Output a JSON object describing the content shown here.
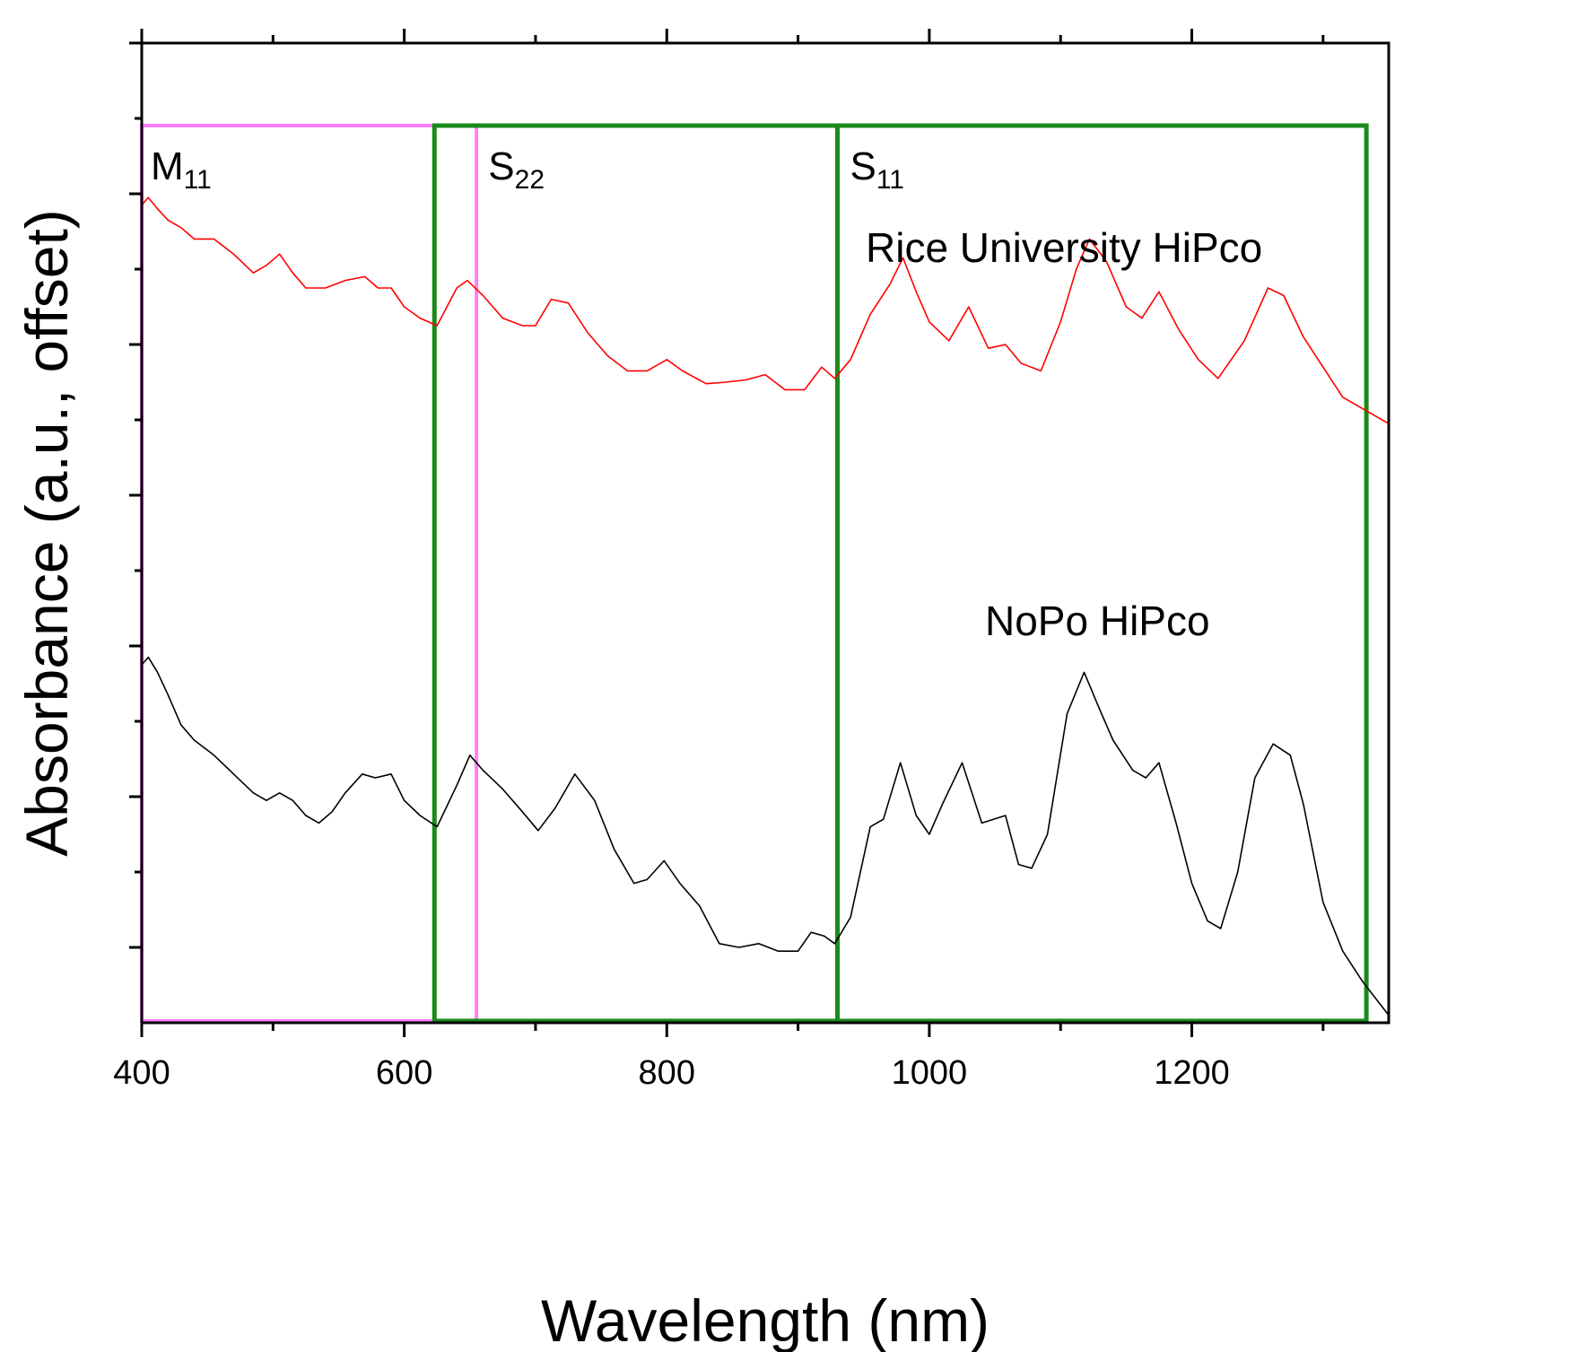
{
  "chart_data": {
    "type": "line",
    "title": "",
    "xlabel": "Wavelength (nm)",
    "ylabel": "Absorbance (a.u., offset)",
    "xlim": [
      400,
      1350
    ],
    "ylim": [
      0,
      13
    ],
    "x_ticks": [
      400,
      600,
      800,
      1000,
      1200
    ],
    "x_minor_ticks": [
      500,
      700,
      900,
      1100,
      1300
    ],
    "y_ticks_major": [
      1,
      3,
      5,
      7,
      9,
      11,
      13
    ],
    "y_ticks_minor": [
      2,
      4,
      6,
      8,
      10,
      12
    ],
    "grid": false,
    "series": [
      {
        "name": "Rice University HiPco",
        "color": "#ff0000",
        "x": [
          400,
          405,
          412,
          420,
          430,
          440,
          455,
          470,
          485,
          495,
          505,
          515,
          525,
          540,
          555,
          570,
          580,
          590,
          600,
          612,
          625,
          640,
          648,
          660,
          675,
          690,
          700,
          712,
          725,
          740,
          755,
          770,
          785,
          800,
          812,
          830,
          845,
          860,
          875,
          890,
          905,
          918,
          928,
          940,
          955,
          970,
          980,
          990,
          1000,
          1015,
          1030,
          1045,
          1058,
          1070,
          1085,
          1100,
          1112,
          1122,
          1135,
          1150,
          1162,
          1175,
          1190,
          1205,
          1220,
          1240,
          1258,
          1270,
          1285,
          1300,
          1315,
          1330,
          1350
        ],
        "y": [
          10.85,
          10.95,
          10.8,
          10.65,
          10.55,
          10.4,
          10.4,
          10.2,
          9.95,
          10.05,
          10.2,
          9.95,
          9.75,
          9.75,
          9.85,
          9.9,
          9.75,
          9.75,
          9.5,
          9.35,
          9.25,
          9.75,
          9.85,
          9.65,
          9.35,
          9.25,
          9.25,
          9.6,
          9.55,
          9.15,
          8.85,
          8.65,
          8.65,
          8.8,
          8.65,
          8.48,
          8.5,
          8.53,
          8.6,
          8.4,
          8.4,
          8.7,
          8.55,
          8.8,
          9.4,
          9.8,
          10.15,
          9.7,
          9.3,
          9.05,
          9.5,
          8.95,
          9.0,
          8.75,
          8.65,
          9.3,
          10.0,
          10.4,
          10.1,
          9.5,
          9.35,
          9.7,
          9.2,
          8.8,
          8.55,
          9.05,
          9.75,
          9.65,
          9.1,
          8.7,
          8.3,
          8.15,
          7.95
        ]
      },
      {
        "name": "NoPo HiPco",
        "color": "#000000",
        "x": [
          400,
          405,
          412,
          420,
          430,
          440,
          455,
          470,
          485,
          495,
          505,
          515,
          525,
          535,
          545,
          555,
          568,
          578,
          590,
          600,
          612,
          625,
          640,
          650,
          660,
          675,
          690,
          702,
          715,
          730,
          745,
          760,
          775,
          785,
          798,
          810,
          825,
          840,
          855,
          870,
          885,
          900,
          910,
          920,
          928,
          940,
          955,
          965,
          978,
          990,
          1000,
          1010,
          1025,
          1040,
          1058,
          1068,
          1078,
          1090,
          1105,
          1118,
          1130,
          1140,
          1155,
          1165,
          1175,
          1188,
          1200,
          1212,
          1222,
          1235,
          1248,
          1262,
          1275,
          1285,
          1300,
          1315,
          1330,
          1350
        ],
        "y": [
          4.75,
          4.85,
          4.65,
          4.35,
          3.95,
          3.75,
          3.55,
          3.3,
          3.05,
          2.95,
          3.05,
          2.95,
          2.75,
          2.65,
          2.8,
          3.05,
          3.3,
          3.25,
          3.3,
          2.95,
          2.75,
          2.6,
          3.15,
          3.55,
          3.35,
          3.1,
          2.8,
          2.55,
          2.85,
          3.3,
          2.95,
          2.3,
          1.85,
          1.9,
          2.15,
          1.85,
          1.55,
          1.05,
          1.0,
          1.05,
          0.95,
          0.95,
          1.2,
          1.15,
          1.05,
          1.4,
          2.6,
          2.7,
          3.45,
          2.75,
          2.5,
          2.9,
          3.45,
          2.65,
          2.75,
          2.1,
          2.05,
          2.5,
          4.1,
          4.65,
          4.15,
          3.75,
          3.35,
          3.25,
          3.45,
          2.65,
          1.85,
          1.35,
          1.25,
          2.0,
          3.25,
          3.7,
          3.55,
          2.9,
          1.6,
          0.95,
          0.55,
          0.1
        ]
      }
    ],
    "regions": [
      {
        "label_main": "M",
        "label_sub": "11",
        "x_start": 400,
        "x_end": 655,
        "color": "#ff80ff"
      },
      {
        "label_main": "S",
        "label_sub": "22",
        "x_start": 623,
        "x_end": 930,
        "color": "#1a8a1a"
      },
      {
        "label_main": "S",
        "label_sub": "11",
        "x_start": 930,
        "x_end": 1333,
        "color": "#1a8a1a"
      }
    ],
    "annotations": {
      "rice": "Rice University HiPco",
      "nopo": "NoPo HiPco"
    }
  }
}
